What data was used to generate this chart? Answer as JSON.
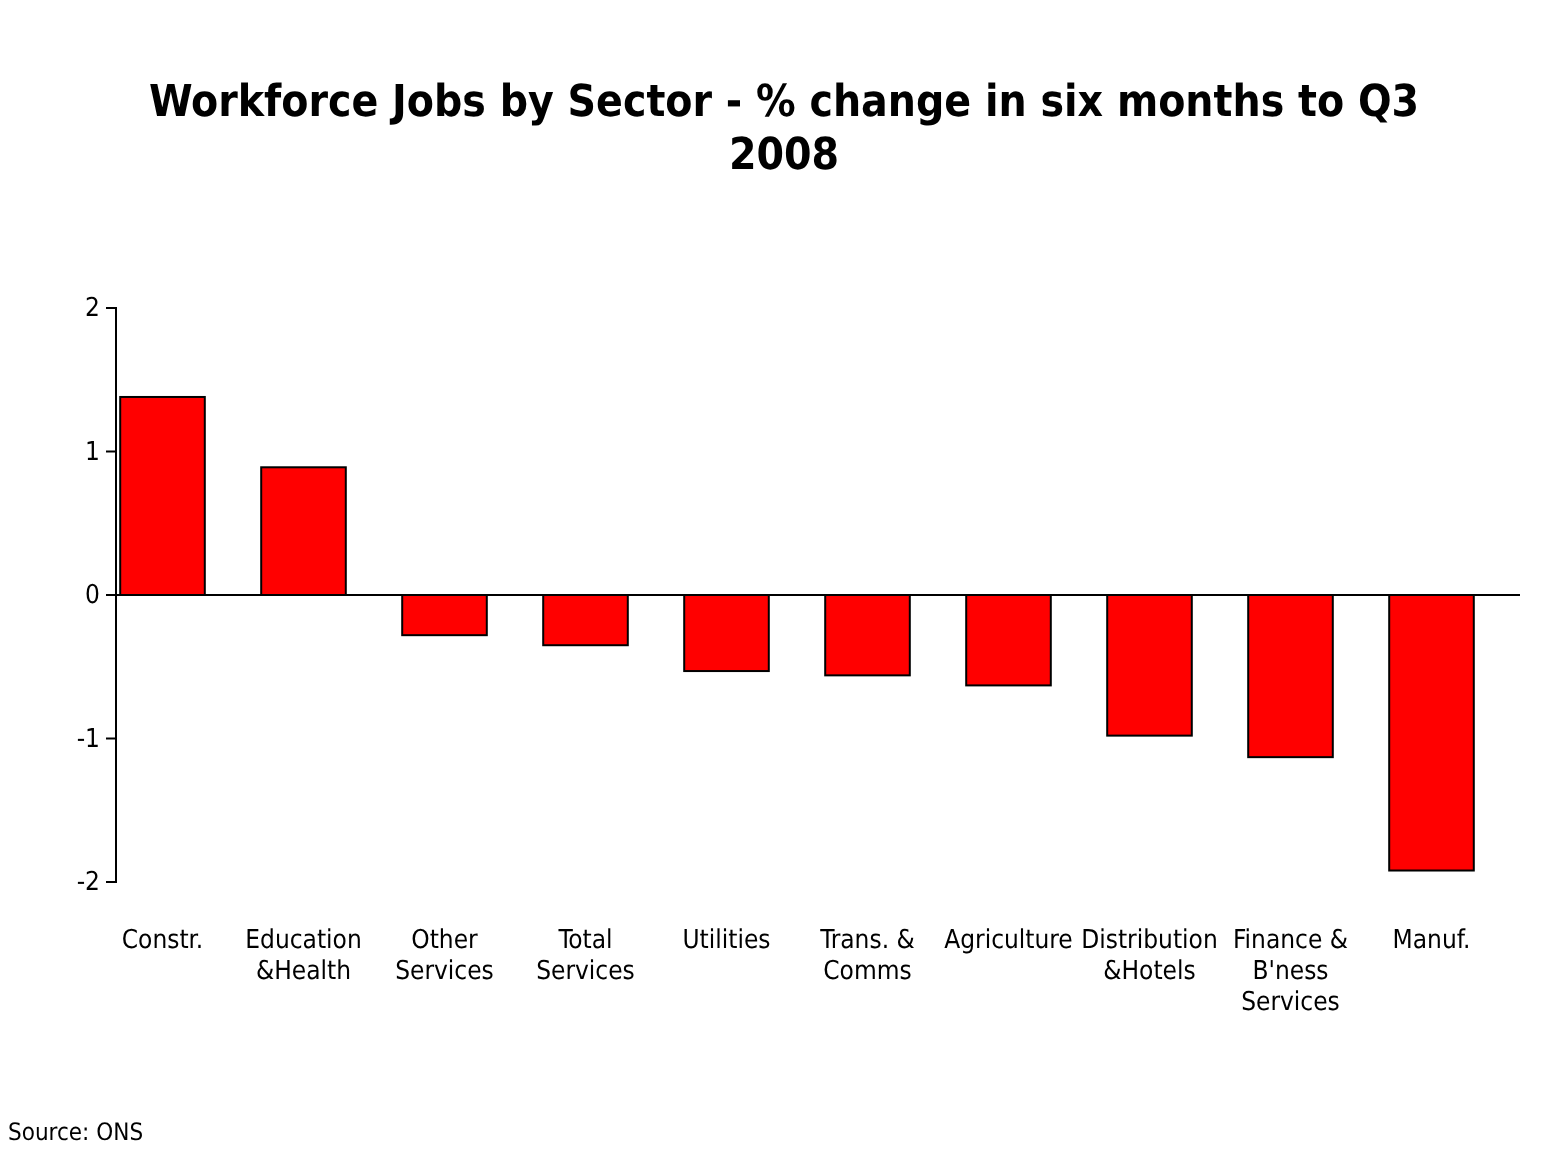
{
  "chart_data": {
    "type": "bar",
    "title": "Workforce Jobs by Sector - % change in six months to Q3 2008",
    "categories": [
      "Constr.",
      "Education &Health",
      "Other Services",
      "Total Services",
      "Utilities",
      "Trans. & Comms",
      "Agriculture",
      "Distribution &Hotels",
      "Finance & B'ness Services",
      "Manuf."
    ],
    "values": [
      1.38,
      0.89,
      -0.28,
      -0.35,
      -0.53,
      -0.56,
      -0.63,
      -0.98,
      -1.13,
      -1.92
    ],
    "color": "#ff0000",
    "ylim": [
      -2,
      2
    ],
    "yticks": [
      -2,
      -1,
      0,
      1,
      2
    ],
    "annotations": [
      "Source: ONS"
    ]
  }
}
